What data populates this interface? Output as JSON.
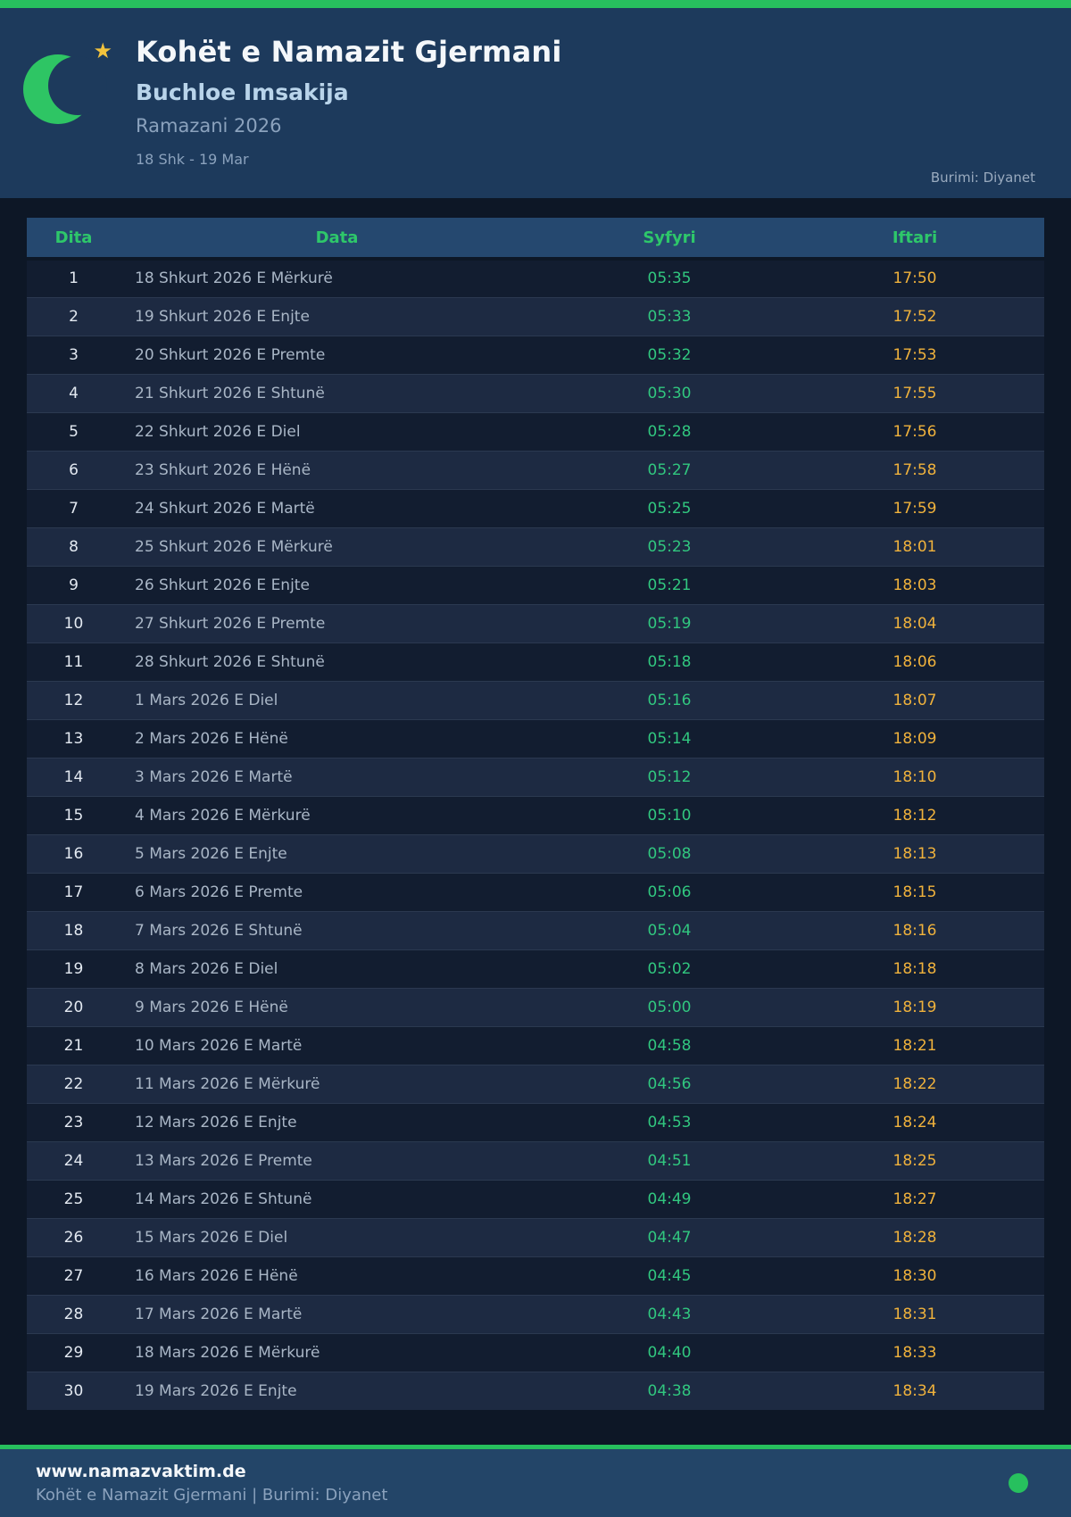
{
  "header": {
    "title": "Kohët e Namazit Gjermani",
    "subtitle": "Buchloe Imsakija",
    "season": "Ramazani 2026",
    "date_range": "18 Shk - 19 Mar",
    "source": "Burimi: Diyanet",
    "star_glyph": "★"
  },
  "table": {
    "columns": [
      "Dita",
      "Data",
      "Syfyri",
      "Iftari"
    ],
    "rows": [
      {
        "dita": "1",
        "data": "18 Shkurt 2026 E Mërkurë",
        "syfyri": "05:35",
        "iftari": "17:50"
      },
      {
        "dita": "2",
        "data": "19 Shkurt 2026 E Enjte",
        "syfyri": "05:33",
        "iftari": "17:52"
      },
      {
        "dita": "3",
        "data": "20 Shkurt 2026 E Premte",
        "syfyri": "05:32",
        "iftari": "17:53"
      },
      {
        "dita": "4",
        "data": "21 Shkurt 2026 E Shtunë",
        "syfyri": "05:30",
        "iftari": "17:55"
      },
      {
        "dita": "5",
        "data": "22 Shkurt 2026 E Diel",
        "syfyri": "05:28",
        "iftari": "17:56"
      },
      {
        "dita": "6",
        "data": "23 Shkurt 2026 E Hënë",
        "syfyri": "05:27",
        "iftari": "17:58"
      },
      {
        "dita": "7",
        "data": "24 Shkurt 2026 E Martë",
        "syfyri": "05:25",
        "iftari": "17:59"
      },
      {
        "dita": "8",
        "data": "25 Shkurt 2026 E Mërkurë",
        "syfyri": "05:23",
        "iftari": "18:01"
      },
      {
        "dita": "9",
        "data": "26 Shkurt 2026 E Enjte",
        "syfyri": "05:21",
        "iftari": "18:03"
      },
      {
        "dita": "10",
        "data": "27 Shkurt 2026 E Premte",
        "syfyri": "05:19",
        "iftari": "18:04"
      },
      {
        "dita": "11",
        "data": "28 Shkurt 2026 E Shtunë",
        "syfyri": "05:18",
        "iftari": "18:06"
      },
      {
        "dita": "12",
        "data": "1 Mars 2026 E Diel",
        "syfyri": "05:16",
        "iftari": "18:07"
      },
      {
        "dita": "13",
        "data": "2 Mars 2026 E Hënë",
        "syfyri": "05:14",
        "iftari": "18:09"
      },
      {
        "dita": "14",
        "data": "3 Mars 2026 E Martë",
        "syfyri": "05:12",
        "iftari": "18:10"
      },
      {
        "dita": "15",
        "data": "4 Mars 2026 E Mërkurë",
        "syfyri": "05:10",
        "iftari": "18:12"
      },
      {
        "dita": "16",
        "data": "5 Mars 2026 E Enjte",
        "syfyri": "05:08",
        "iftari": "18:13"
      },
      {
        "dita": "17",
        "data": "6 Mars 2026 E Premte",
        "syfyri": "05:06",
        "iftari": "18:15"
      },
      {
        "dita": "18",
        "data": "7 Mars 2026 E Shtunë",
        "syfyri": "05:04",
        "iftari": "18:16"
      },
      {
        "dita": "19",
        "data": "8 Mars 2026 E Diel",
        "syfyri": "05:02",
        "iftari": "18:18"
      },
      {
        "dita": "20",
        "data": "9 Mars 2026 E Hënë",
        "syfyri": "05:00",
        "iftari": "18:19"
      },
      {
        "dita": "21",
        "data": "10 Mars 2026 E Martë",
        "syfyri": "04:58",
        "iftari": "18:21"
      },
      {
        "dita": "22",
        "data": "11 Mars 2026 E Mërkurë",
        "syfyri": "04:56",
        "iftari": "18:22"
      },
      {
        "dita": "23",
        "data": "12 Mars 2026 E Enjte",
        "syfyri": "04:53",
        "iftari": "18:24"
      },
      {
        "dita": "24",
        "data": "13 Mars 2026 E Premte",
        "syfyri": "04:51",
        "iftari": "18:25"
      },
      {
        "dita": "25",
        "data": "14 Mars 2026 E Shtunë",
        "syfyri": "04:49",
        "iftari": "18:27"
      },
      {
        "dita": "26",
        "data": "15 Mars 2026 E Diel",
        "syfyri": "04:47",
        "iftari": "18:28"
      },
      {
        "dita": "27",
        "data": "16 Mars 2026 E Hënë",
        "syfyri": "04:45",
        "iftari": "18:30"
      },
      {
        "dita": "28",
        "data": "17 Mars 2026 E Martë",
        "syfyri": "04:43",
        "iftari": "18:31"
      },
      {
        "dita": "29",
        "data": "18 Mars 2026 E Mërkurë",
        "syfyri": "04:40",
        "iftari": "18:33"
      },
      {
        "dita": "30",
        "data": "19 Mars 2026 E Enjte",
        "syfyri": "04:38",
        "iftari": "18:34"
      }
    ]
  },
  "footer": {
    "website": "www.namazvaktim.de",
    "tagline": "Kohët e Namazit Gjermani | Burimi: Diyanet"
  },
  "colors": {
    "accent_green": "#27c05e",
    "syfyri_green": "#31c77f",
    "iftari_amber": "#f0b23c",
    "header_bg": "#1d3a5c",
    "page_bg": "#0d1726",
    "table_header_bg": "#25486f",
    "row_odd_bg": "#121d30",
    "row_even_bg": "#1d2a42",
    "footer_bg": "#234568",
    "star_gold": "#f2c33d"
  }
}
